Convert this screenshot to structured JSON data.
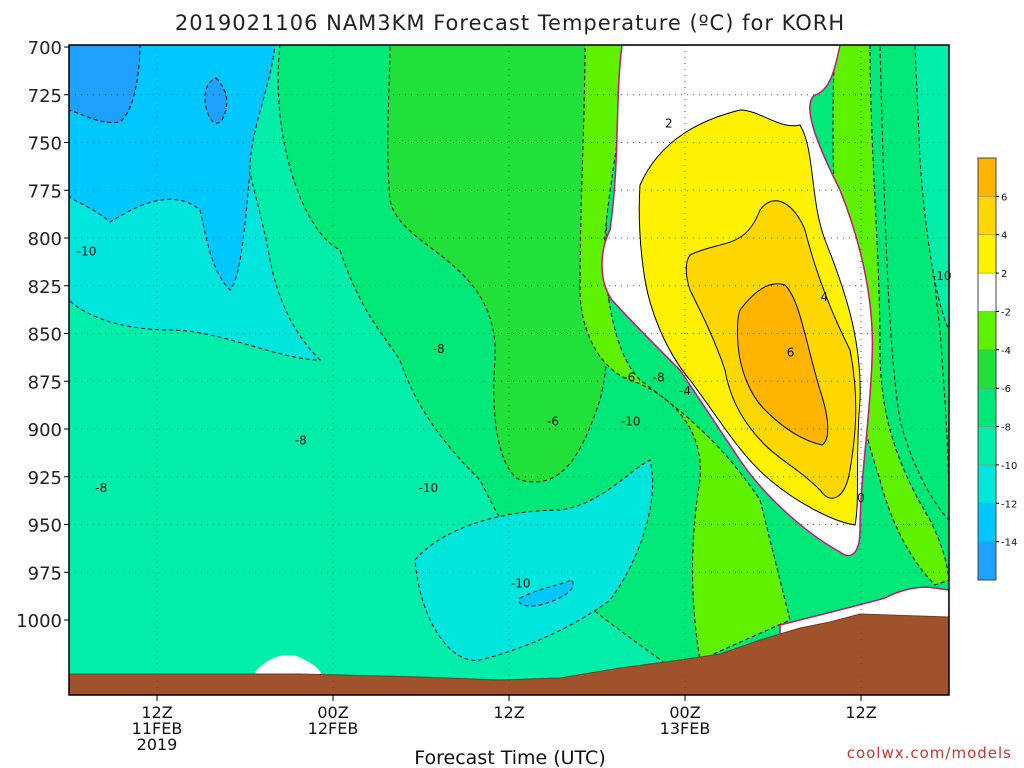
{
  "chart_data": {
    "type": "heatmap",
    "title": "2019021106 NAM3KM Forecast Temperature (ºC) for KORH",
    "xlabel": "Forecast Time (UTC)",
    "ylabel": "",
    "credit": "coolwx.com/models",
    "y_levels": [
      700,
      725,
      750,
      775,
      800,
      825,
      850,
      875,
      900,
      925,
      950,
      975,
      1000
    ],
    "ylim": [
      1000,
      700
    ],
    "y_scale": "linear",
    "x_ticks": [
      {
        "hour": 12,
        "line1": "12Z",
        "line2": "11FEB",
        "line3": "2019"
      },
      {
        "hour": 24,
        "line1": "00Z",
        "line2": "12FEB",
        "line3": ""
      },
      {
        "hour": 36,
        "line1": "12Z",
        "line2": "",
        "line3": ""
      },
      {
        "hour": 48,
        "line1": "00Z",
        "line2": "13FEB",
        "line3": ""
      },
      {
        "hour": 60,
        "line1": "12Z",
        "line2": "",
        "line3": ""
      }
    ],
    "xlim_hours": [
      6,
      66
    ],
    "colorbar": {
      "levels": [
        -14,
        -12,
        -10,
        -8,
        -6,
        -4,
        -2,
        2,
        4,
        6
      ],
      "bins": [
        {
          "lo": -16,
          "hi": -14,
          "color": "#1ea0ff"
        },
        {
          "lo": -14,
          "hi": -12,
          "color": "#00c8ff"
        },
        {
          "lo": -12,
          "hi": -10,
          "color": "#00e6dc"
        },
        {
          "lo": -10,
          "hi": -8,
          "color": "#00eeaa"
        },
        {
          "lo": -8,
          "hi": -6,
          "color": "#00e878"
        },
        {
          "lo": -6,
          "hi": -4,
          "color": "#22e03a"
        },
        {
          "lo": -4,
          "hi": -2,
          "color": "#5ef200"
        },
        {
          "lo": -2,
          "hi": 2,
          "color": "#ffffff"
        },
        {
          "lo": 2,
          "hi": 4,
          "color": "#fff200"
        },
        {
          "lo": 4,
          "hi": 6,
          "color": "#ffd700"
        },
        {
          "lo": 6,
          "hi": 8,
          "color": "#ffb400"
        }
      ]
    },
    "contour_labels": [
      {
        "text": "-10",
        "hour": 7.2,
        "p": 807
      },
      {
        "text": "-8",
        "hour": 8.2,
        "p": 931
      },
      {
        "text": "-8",
        "hour": 21.8,
        "p": 906
      },
      {
        "text": "-8",
        "hour": 31.2,
        "p": 858
      },
      {
        "text": "-10",
        "hour": 30.5,
        "p": 931
      },
      {
        "text": "-10",
        "hour": 36.8,
        "p": 981
      },
      {
        "text": "-6",
        "hour": 39.0,
        "p": 896
      },
      {
        "text": "-10",
        "hour": 44.3,
        "p": 896
      },
      {
        "text": "-6",
        "hour": 44.2,
        "p": 873
      },
      {
        "text": "-8",
        "hour": 46.2,
        "p": 873
      },
      {
        "text": "-4",
        "hour": 48.0,
        "p": 880
      },
      {
        "text": "2",
        "hour": 46.9,
        "p": 740
      },
      {
        "text": "4",
        "hour": 57.5,
        "p": 831
      },
      {
        "text": "6",
        "hour": 55.2,
        "p": 860
      },
      {
        "text": "0",
        "hour": 60.0,
        "p": 936
      },
      {
        "text": "-10",
        "hour": 65.5,
        "p": 820
      }
    ],
    "series": [
      {
        "temp": -15.5,
        "region": "cold core 11FEB upper"
      },
      {
        "temp": -15.5,
        "region": "cold pocket near 12Z 11FEB"
      },
      {
        "temp": 6.5,
        "region": "warm core 13FEB"
      },
      {
        "temp": 3,
        "region": "warm nose 13FEB"
      }
    ],
    "terrain": {
      "label": "ground",
      "color": "#a0522d"
    },
    "freezing_line_color": "#c2187a"
  }
}
